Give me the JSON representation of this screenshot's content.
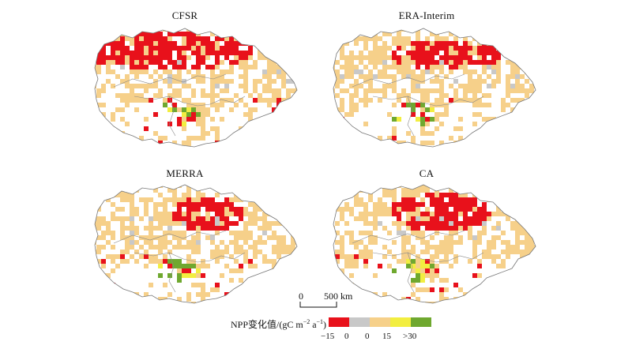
{
  "panels": [
    {
      "title": "CFSR"
    },
    {
      "title": "ERA-Interim"
    },
    {
      "title": "MERRA"
    },
    {
      "title": "CA"
    }
  ],
  "scale_bar": {
    "start": "0",
    "end": "500 km"
  },
  "legend": {
    "title_prefix": "NPP变化值/(gC m",
    "title_exp1": "−2",
    "title_mid": " a",
    "title_exp2": "−1",
    "title_suffix": ")",
    "classes": [
      {
        "color": "#e8111b"
      },
      {
        "color": "#c8c8c8"
      },
      {
        "color": "#f6d08a"
      },
      {
        "color": "#f2ee40"
      },
      {
        "color": "#6fa82f"
      }
    ],
    "ticks": [
      "−15",
      "0",
      "0",
      "15",
      ">30"
    ]
  }
}
